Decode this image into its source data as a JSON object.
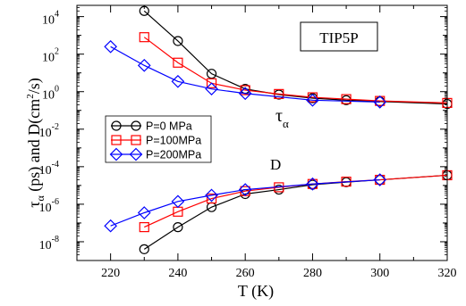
{
  "chart_data": {
    "type": "line",
    "y_scale": "log",
    "x_ticks": [
      220,
      240,
      260,
      280,
      300,
      320
    ],
    "x_tick_labels": [
      "220",
      "240",
      "260",
      "280",
      "300",
      "320"
    ],
    "xlim": [
      210,
      320
    ],
    "ylim_exp": [
      -9,
      4.6
    ],
    "y_tick_exps": [
      -8,
      -6,
      -4,
      -2,
      0,
      2,
      4
    ],
    "y_tick_labels": [
      "10",
      "10",
      "10",
      "10",
      "10",
      "10",
      "10"
    ],
    "y_tick_label_exps": [
      "-8",
      "-6",
      "-4",
      "-2",
      "0",
      "2",
      "4"
    ],
    "xlabel": "T (K)",
    "ylabel_tau": "τ",
    "ylabel_tau_sub": "α",
    "ylabel_rest": " (ps) and D(cm",
    "ylabel_sup": "2",
    "ylabel_end": "/s)",
    "annotations": {
      "model_box": "TIP5P",
      "tau": "τ",
      "tau_sub": "α",
      "d_label": "D"
    },
    "series": [
      {
        "name": "P=0 MPa",
        "color": "#000000",
        "marker": "circle",
        "tau": {
          "x": [
            230,
            240,
            250,
            260,
            270,
            280,
            290,
            300,
            320
          ],
          "y": [
            20000,
            500,
            9,
            1.4,
            0.7,
            0.45,
            0.35,
            0.3,
            0.22
          ]
        },
        "D": {
          "x": [
            230,
            240,
            250,
            260,
            270,
            280,
            290,
            300,
            320
          ],
          "y": [
            4e-09,
            6e-08,
            7e-07,
            3.5e-06,
            6e-06,
            1.1e-05,
            1.5e-05,
            2e-05,
            3.5e-05
          ]
        }
      },
      {
        "name": "P=100MPa",
        "color": "#ff0000",
        "marker": "square",
        "tau": {
          "x": [
            230,
            240,
            250,
            260,
            270,
            280,
            290,
            300,
            320
          ],
          "y": [
            800,
            35,
            2.8,
            1.2,
            0.75,
            0.5,
            0.4,
            0.32,
            0.25
          ]
        },
        "D": {
          "x": [
            230,
            240,
            250,
            260,
            270,
            280,
            290,
            300,
            320
          ],
          "y": [
            6e-08,
            4e-07,
            2e-06,
            5e-06,
            8e-06,
            1.2e-05,
            1.6e-05,
            2e-05,
            3.5e-05
          ]
        }
      },
      {
        "name": "P=200MPa",
        "color": "#0000ff",
        "marker": "diamond",
        "tau": {
          "x": [
            220,
            230,
            240,
            250,
            260,
            280,
            300
          ],
          "y": [
            250,
            25,
            3.5,
            1.4,
            0.8,
            0.35,
            0.28
          ]
        },
        "D": {
          "x": [
            220,
            230,
            240,
            250,
            260,
            280,
            300
          ],
          "y": [
            7e-08,
            3.5e-07,
            1.4e-06,
            3e-06,
            6e-06,
            1.2e-05,
            2e-05
          ]
        }
      }
    ]
  }
}
